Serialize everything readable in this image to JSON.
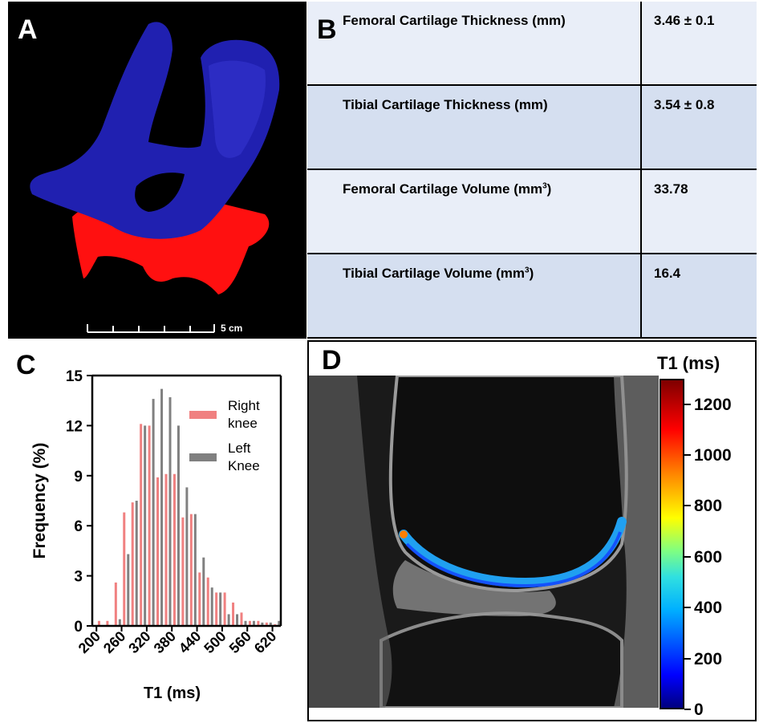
{
  "panels": {
    "a": {
      "letter": "A",
      "scale_label": "5 cm"
    },
    "b": {
      "letter": "B",
      "rows": [
        {
          "label": "Femoral Cartilage Thickness (mm)",
          "value": "3.46 ± 0.1"
        },
        {
          "label": "Tibial Cartilage Thickness (mm)",
          "value": "3.54 ± 0.8"
        },
        {
          "label": "Femoral Cartilage Volume (mm",
          "sup": "3",
          "label_end": ")",
          "value": "33.78"
        },
        {
          "label": "Tibial Cartilage Volume (mm",
          "sup": "3",
          "label_end": ")",
          "value": "16.4"
        }
      ]
    },
    "c": {
      "letter": "C"
    },
    "d": {
      "letter": "D",
      "colorbar_title": "T1 (ms)",
      "colorbar_ticks": [
        "1200",
        "1000",
        "800",
        "600",
        "400",
        "200",
        "0"
      ]
    }
  },
  "colors": {
    "right_knee": "#f08080",
    "left_knee": "#808080",
    "femoral": "#2020b0",
    "tibial": "#ff1010"
  },
  "chart_data": {
    "type": "bar",
    "xlabel": "T1 (ms)",
    "ylabel": "Frequency (%)",
    "ylim": [
      0,
      15
    ],
    "xlim": [
      190,
      640
    ],
    "yticks": [
      0,
      3,
      6,
      9,
      12,
      15
    ],
    "xticks": [
      200,
      260,
      320,
      380,
      440,
      500,
      560,
      620
    ],
    "legend": [
      "Right knee",
      "Left Knee"
    ],
    "legend_position": "top-right",
    "x": [
      210,
      230,
      250,
      270,
      290,
      310,
      330,
      350,
      370,
      390,
      410,
      430,
      450,
      470,
      490,
      510,
      530,
      550,
      570,
      590,
      610,
      630
    ],
    "series": [
      {
        "name": "Right knee",
        "values": [
          0.3,
          0.3,
          2.6,
          6.8,
          7.4,
          12.1,
          12.0,
          8.9,
          9.1,
          9.1,
          6.5,
          6.7,
          3.2,
          2.9,
          2.0,
          2.0,
          1.4,
          0.8,
          0.3,
          0.3,
          0.2,
          0.1
        ]
      },
      {
        "name": "Left Knee",
        "values": [
          0.0,
          0.0,
          0.4,
          4.3,
          7.5,
          12.0,
          13.6,
          14.2,
          13.7,
          12.0,
          8.3,
          6.7,
          4.1,
          2.3,
          2.0,
          0.7,
          0.7,
          0.3,
          0.3,
          0.2,
          0.2,
          0.3
        ]
      }
    ]
  }
}
